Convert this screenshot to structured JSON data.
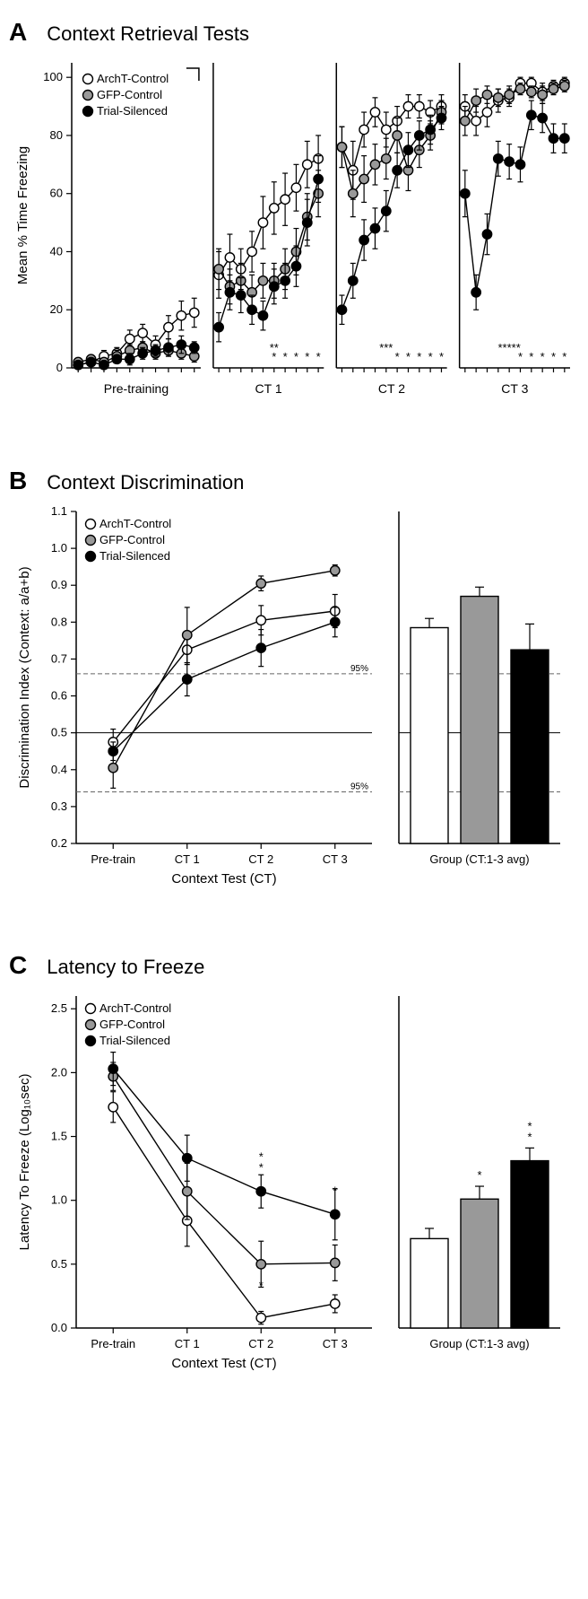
{
  "panelA": {
    "letter": "A",
    "title": "Context Retrieval Tests",
    "ylabel": "Mean % Time Freezing",
    "ylim": [
      0,
      105
    ],
    "yticks": [
      0,
      20,
      40,
      60,
      80,
      100
    ],
    "legend": [
      {
        "label": "ArchT-Control",
        "fill": "#ffffff"
      },
      {
        "label": "GFP-Control",
        "fill": "#999999"
      },
      {
        "label": "Trial-Silenced",
        "fill": "#000000"
      }
    ],
    "subpanels": [
      {
        "label": "Pre-training",
        "n": 10,
        "series": {
          "archt": {
            "y": [
              1,
              2,
              4,
              5,
              10,
              12,
              8,
              14,
              18,
              19
            ],
            "err": [
              1,
              1,
              2,
              2,
              3,
              3,
              3,
              4,
              5,
              5
            ]
          },
          "gfp": {
            "y": [
              2,
              3,
              2,
              4,
              6,
              7,
              5,
              6,
              5,
              4
            ],
            "err": [
              1,
              1,
              1,
              2,
              2,
              2,
              2,
              2,
              2,
              2
            ]
          },
          "trial": {
            "y": [
              1,
              2,
              1,
              3,
              3,
              5,
              6,
              7,
              8,
              7
            ],
            "err": [
              1,
              1,
              1,
              1,
              2,
              2,
              2,
              3,
              3,
              2
            ]
          }
        }
      },
      {
        "label": "CT 1",
        "n": 10,
        "series": {
          "archt": {
            "y": [
              32,
              38,
              34,
              40,
              50,
              55,
              58,
              62,
              70,
              72
            ],
            "err": [
              8,
              8,
              7,
              7,
              9,
              9,
              9,
              8,
              8,
              8
            ]
          },
          "gfp": {
            "y": [
              34,
              28,
              30,
              26,
              30,
              30,
              34,
              40,
              52,
              60
            ],
            "err": [
              7,
              6,
              6,
              6,
              6,
              6,
              7,
              8,
              8,
              8
            ]
          },
          "trial": {
            "y": [
              14,
              26,
              25,
              20,
              18,
              28,
              30,
              35,
              50,
              65
            ],
            "err": [
              5,
              6,
              6,
              5,
              5,
              6,
              6,
              7,
              8,
              8
            ]
          }
        },
        "sig": [
          [
            6,
            "**"
          ],
          [
            6,
            "*"
          ],
          [
            7,
            "*"
          ],
          [
            8,
            "*"
          ],
          [
            9,
            "*"
          ],
          [
            10,
            "*"
          ]
        ]
      },
      {
        "label": "CT 2",
        "n": 10,
        "series": {
          "archt": {
            "y": [
              76,
              68,
              82,
              88,
              82,
              85,
              90,
              90,
              88,
              90
            ],
            "err": [
              7,
              10,
              6,
              5,
              6,
              5,
              4,
              4,
              4,
              4
            ]
          },
          "gfp": {
            "y": [
              76,
              60,
              65,
              70,
              72,
              80,
              68,
              75,
              80,
              88
            ],
            "err": [
              7,
              8,
              8,
              7,
              7,
              6,
              7,
              6,
              5,
              4
            ]
          },
          "trial": {
            "y": [
              20,
              30,
              44,
              48,
              54,
              68,
              75,
              80,
              82,
              86
            ],
            "err": [
              5,
              6,
              7,
              7,
              7,
              6,
              6,
              5,
              5,
              4
            ]
          }
        },
        "sig": [
          [
            5,
            "***"
          ],
          [
            6,
            "*"
          ],
          [
            7,
            "*"
          ],
          [
            8,
            "*"
          ],
          [
            9,
            "*"
          ],
          [
            10,
            "*"
          ]
        ]
      },
      {
        "label": "CT 3",
        "n": 10,
        "series": {
          "archt": {
            "y": [
              90,
              85,
              88,
              92,
              93,
              98,
              98,
              95,
              97,
              98
            ],
            "err": [
              4,
              5,
              5,
              4,
              3,
              2,
              2,
              3,
              2,
              2
            ]
          },
          "gfp": {
            "y": [
              85,
              92,
              94,
              93,
              94,
              96,
              95,
              94,
              96,
              97
            ],
            "err": [
              5,
              4,
              3,
              3,
              3,
              2,
              2,
              3,
              2,
              2
            ]
          },
          "trial": {
            "y": [
              60,
              26,
              46,
              72,
              71,
              70,
              87,
              86,
              79,
              79
            ],
            "err": [
              8,
              6,
              7,
              6,
              6,
              6,
              5,
              5,
              5,
              5
            ]
          }
        },
        "sig": [
          [
            5,
            "*****"
          ],
          [
            6,
            "*"
          ],
          [
            7,
            "*"
          ],
          [
            8,
            "*"
          ],
          [
            9,
            "*"
          ],
          [
            10,
            "*"
          ]
        ]
      }
    ]
  },
  "panelB": {
    "letter": "B",
    "title": "Context Discrimination",
    "ylabel": "Discrimination Index (Context: a/a+b)",
    "xlabel": "Context Test (CT)",
    "bar_xlabel": "Group (CT:1-3 avg)",
    "ylim": [
      0.2,
      1.1
    ],
    "yticks": [
      0.2,
      0.3,
      0.4,
      0.5,
      0.6,
      0.7,
      0.8,
      0.9,
      1.0,
      1.1
    ],
    "xticks": [
      "Pre-train",
      "CT 1",
      "CT 2",
      "CT 3"
    ],
    "chance": 0.5,
    "ci95": [
      0.34,
      0.66
    ],
    "ci_label": "95%",
    "legend": [
      {
        "label": "ArchT-Control",
        "fill": "#ffffff"
      },
      {
        "label": "GFP-Control",
        "fill": "#999999"
      },
      {
        "label": "Trial-Silenced",
        "fill": "#000000"
      }
    ],
    "series": {
      "archt": {
        "y": [
          0.475,
          0.725,
          0.805,
          0.83
        ],
        "err": [
          0.035,
          0.04,
          0.04,
          0.045
        ]
      },
      "gfp": {
        "y": [
          0.405,
          0.765,
          0.905,
          0.94
        ],
        "err": [
          0.055,
          0.075,
          0.02,
          0.015
        ]
      },
      "trial": {
        "y": [
          0.45,
          0.645,
          0.73,
          0.8
        ],
        "err": [
          0.025,
          0.045,
          0.05,
          0.04
        ]
      }
    },
    "bars": [
      {
        "fill": "#ffffff",
        "y": 0.785,
        "err": 0.025
      },
      {
        "fill": "#999999",
        "y": 0.87,
        "err": 0.025
      },
      {
        "fill": "#000000",
        "y": 0.725,
        "err": 0.07
      }
    ]
  },
  "panelC": {
    "letter": "C",
    "title": "Latency to Freeze",
    "ylabel": "Latency To Freeze (Log₁₀sec)",
    "xlabel": "Context Test (CT)",
    "bar_xlabel": "Group (CT:1-3 avg)",
    "ylim": [
      0.0,
      2.6
    ],
    "yticks": [
      0.0,
      0.5,
      1.0,
      1.5,
      2.0,
      2.5
    ],
    "xticks": [
      "Pre-train",
      "CT 1",
      "CT 2",
      "CT 3"
    ],
    "legend": [
      {
        "label": "ArchT-Control",
        "fill": "#ffffff"
      },
      {
        "label": "GFP-Control",
        "fill": "#999999"
      },
      {
        "label": "Trial-Silenced",
        "fill": "#000000"
      }
    ],
    "series": {
      "archt": {
        "y": [
          1.73,
          0.84,
          0.08,
          0.19
        ],
        "err": [
          0.12,
          0.2,
          0.05,
          0.07
        ]
      },
      "gfp": {
        "y": [
          1.97,
          1.07,
          0.5,
          0.51
        ],
        "err": [
          0.11,
          0.22,
          0.18,
          0.14
        ]
      },
      "trial": {
        "y": [
          2.03,
          1.33,
          1.07,
          0.89
        ],
        "err": [
          0.13,
          0.18,
          0.13,
          0.2
        ]
      }
    },
    "line_sig": [
      {
        "x": 2,
        "labels": [
          "**",
          "*"
        ]
      },
      {
        "x": 3,
        "labels": [
          "*"
        ]
      }
    ],
    "bars": [
      {
        "fill": "#ffffff",
        "y": 0.7,
        "err": 0.08,
        "sig": ""
      },
      {
        "fill": "#999999",
        "y": 1.01,
        "err": 0.1,
        "sig": "*"
      },
      {
        "fill": "#000000",
        "y": 1.31,
        "err": 0.1,
        "sig": "**"
      }
    ]
  },
  "colors": {
    "archt": "#ffffff",
    "gfp": "#999999",
    "trial": "#000000",
    "stroke": "#000000",
    "bg": "#ffffff"
  },
  "marker_radius": 5.2,
  "line_width": 1.4
}
